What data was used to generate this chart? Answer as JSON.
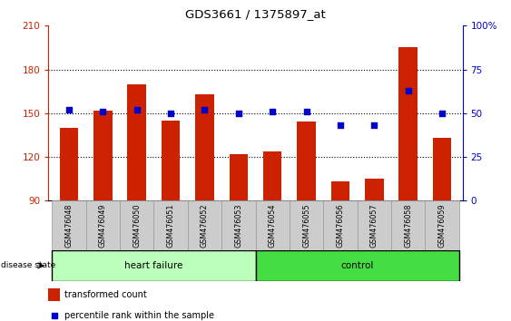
{
  "title": "GDS3661 / 1375897_at",
  "samples": [
    "GSM476048",
    "GSM476049",
    "GSM476050",
    "GSM476051",
    "GSM476052",
    "GSM476053",
    "GSM476054",
    "GSM476055",
    "GSM476056",
    "GSM476057",
    "GSM476058",
    "GSM476059"
  ],
  "bar_values": [
    140,
    152,
    170,
    145,
    163,
    122,
    124,
    144,
    103,
    105,
    195,
    133
  ],
  "dot_values": [
    52,
    51,
    52,
    50,
    52,
    50,
    51,
    51,
    43,
    43,
    63,
    50
  ],
  "ylim_left": [
    90,
    210
  ],
  "ylim_right": [
    0,
    100
  ],
  "yticks_left": [
    90,
    120,
    150,
    180,
    210
  ],
  "yticks_right": [
    0,
    25,
    50,
    75,
    100
  ],
  "bar_color": "#cc2200",
  "dot_color": "#0000cc",
  "grid_values": [
    120,
    150,
    180
  ],
  "hf_count": 6,
  "ctrl_count": 6,
  "hf_color": "#bbffbb",
  "ctrl_color": "#44dd44",
  "disease_label": "disease state",
  "hf_label": "heart failure",
  "ctrl_label": "control",
  "legend_bar": "transformed count",
  "legend_dot": "percentile rank within the sample",
  "bar_base": 90,
  "tick_color_left": "#cc2200",
  "tick_color_right": "#0000cc",
  "xlabel_bg": "#cccccc",
  "xlabel_edge": "#999999"
}
